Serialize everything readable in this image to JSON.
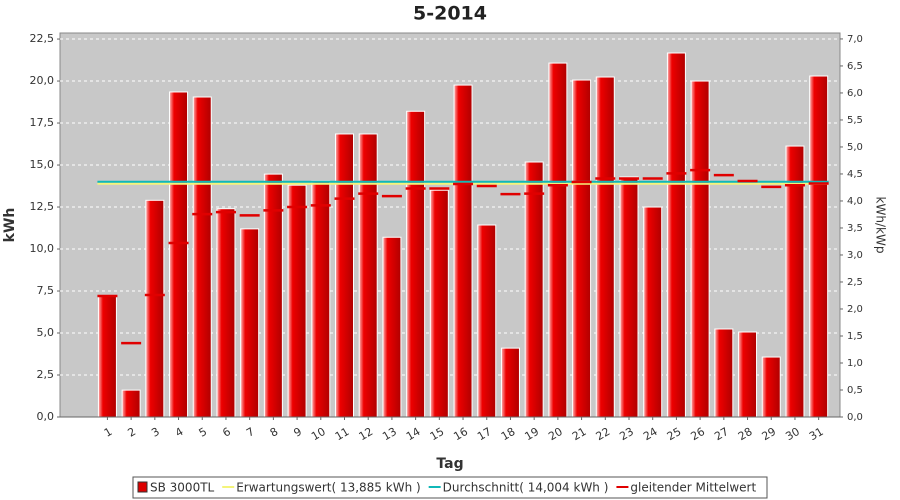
{
  "chart_data": {
    "type": "bar",
    "title": "5-2014",
    "x_label": "Tag",
    "y_label": "kWh",
    "y2_label": "kWh/kWp",
    "categories": [
      "1",
      "2",
      "3",
      "4",
      "5",
      "6",
      "7",
      "8",
      "9",
      "10",
      "11",
      "12",
      "13",
      "14",
      "15",
      "16",
      "17",
      "18",
      "19",
      "20",
      "21",
      "22",
      "23",
      "24",
      "25",
      "26",
      "27",
      "28",
      "29",
      "30",
      "31"
    ],
    "series": [
      {
        "name": "SB 3000TL",
        "style": "bar",
        "color": "#dd0000",
        "values": [
          7.2,
          1.6,
          12.9,
          19.35,
          19.05,
          12.4,
          11.2,
          14.46,
          13.8,
          14.05,
          16.85,
          16.85,
          10.7,
          18.2,
          13.5,
          19.76,
          11.43,
          4.1,
          15.18,
          21.07,
          20.06,
          20.24,
          14.29,
          12.5,
          21.67,
          20.0,
          5.24,
          5.06,
          3.57,
          16.13,
          20.3
        ]
      },
      {
        "name": "Erwartungswert( 13,885 kWh )",
        "style": "hline",
        "color": "#f4f47a",
        "value": 13.885
      },
      {
        "name": "Durchschnitt( 14,004 kWh )",
        "style": "hline",
        "color": "#10b8b8",
        "value": 14.004
      },
      {
        "name": "gleitender Mittelwert",
        "style": "dash",
        "color": "#e00000",
        "values": [
          7.2,
          4.4,
          7.26,
          10.36,
          12.08,
          12.2,
          12.0,
          12.3,
          12.5,
          12.6,
          13.0,
          13.3,
          13.15,
          13.6,
          13.6,
          13.87,
          13.75,
          13.27,
          13.3,
          13.8,
          13.99,
          14.2,
          14.2,
          14.2,
          14.5,
          14.7,
          14.4,
          14.05,
          13.7,
          13.8,
          13.9
        ]
      }
    ],
    "ylim": [
      0,
      22.86
    ],
    "yticks": [
      {
        "value": 0,
        "label": "0,0"
      },
      {
        "value": 2.5,
        "label": "2,5"
      },
      {
        "value": 5,
        "label": "5,0"
      },
      {
        "value": 7.5,
        "label": "7,5"
      },
      {
        "value": 10,
        "label": "10,0"
      },
      {
        "value": 12.5,
        "label": "12,5"
      },
      {
        "value": 15,
        "label": "15,0"
      },
      {
        "value": 17.5,
        "label": "17,5"
      },
      {
        "value": 20,
        "label": "20,0"
      },
      {
        "value": 22.5,
        "label": "22,5"
      }
    ],
    "y2lim": [
      0,
      7.11
    ],
    "y2ticks": [
      {
        "value": 0,
        "label": "0,0"
      },
      {
        "value": 0.5,
        "label": "0,5"
      },
      {
        "value": 1,
        "label": "1,0"
      },
      {
        "value": 1.5,
        "label": "1,5"
      },
      {
        "value": 2,
        "label": "2,0"
      },
      {
        "value": 2.5,
        "label": "2,5"
      },
      {
        "value": 3,
        "label": "3,0"
      },
      {
        "value": 3.5,
        "label": "3,5"
      },
      {
        "value": 4,
        "label": "4,0"
      },
      {
        "value": 4.5,
        "label": "4,5"
      },
      {
        "value": 5,
        "label": "5,0"
      },
      {
        "value": 5.5,
        "label": "5,5"
      },
      {
        "value": 6,
        "label": "6,0"
      },
      {
        "value": 6.5,
        "label": "6,5"
      },
      {
        "value": 7,
        "label": "7,0"
      }
    ],
    "grid": true
  }
}
